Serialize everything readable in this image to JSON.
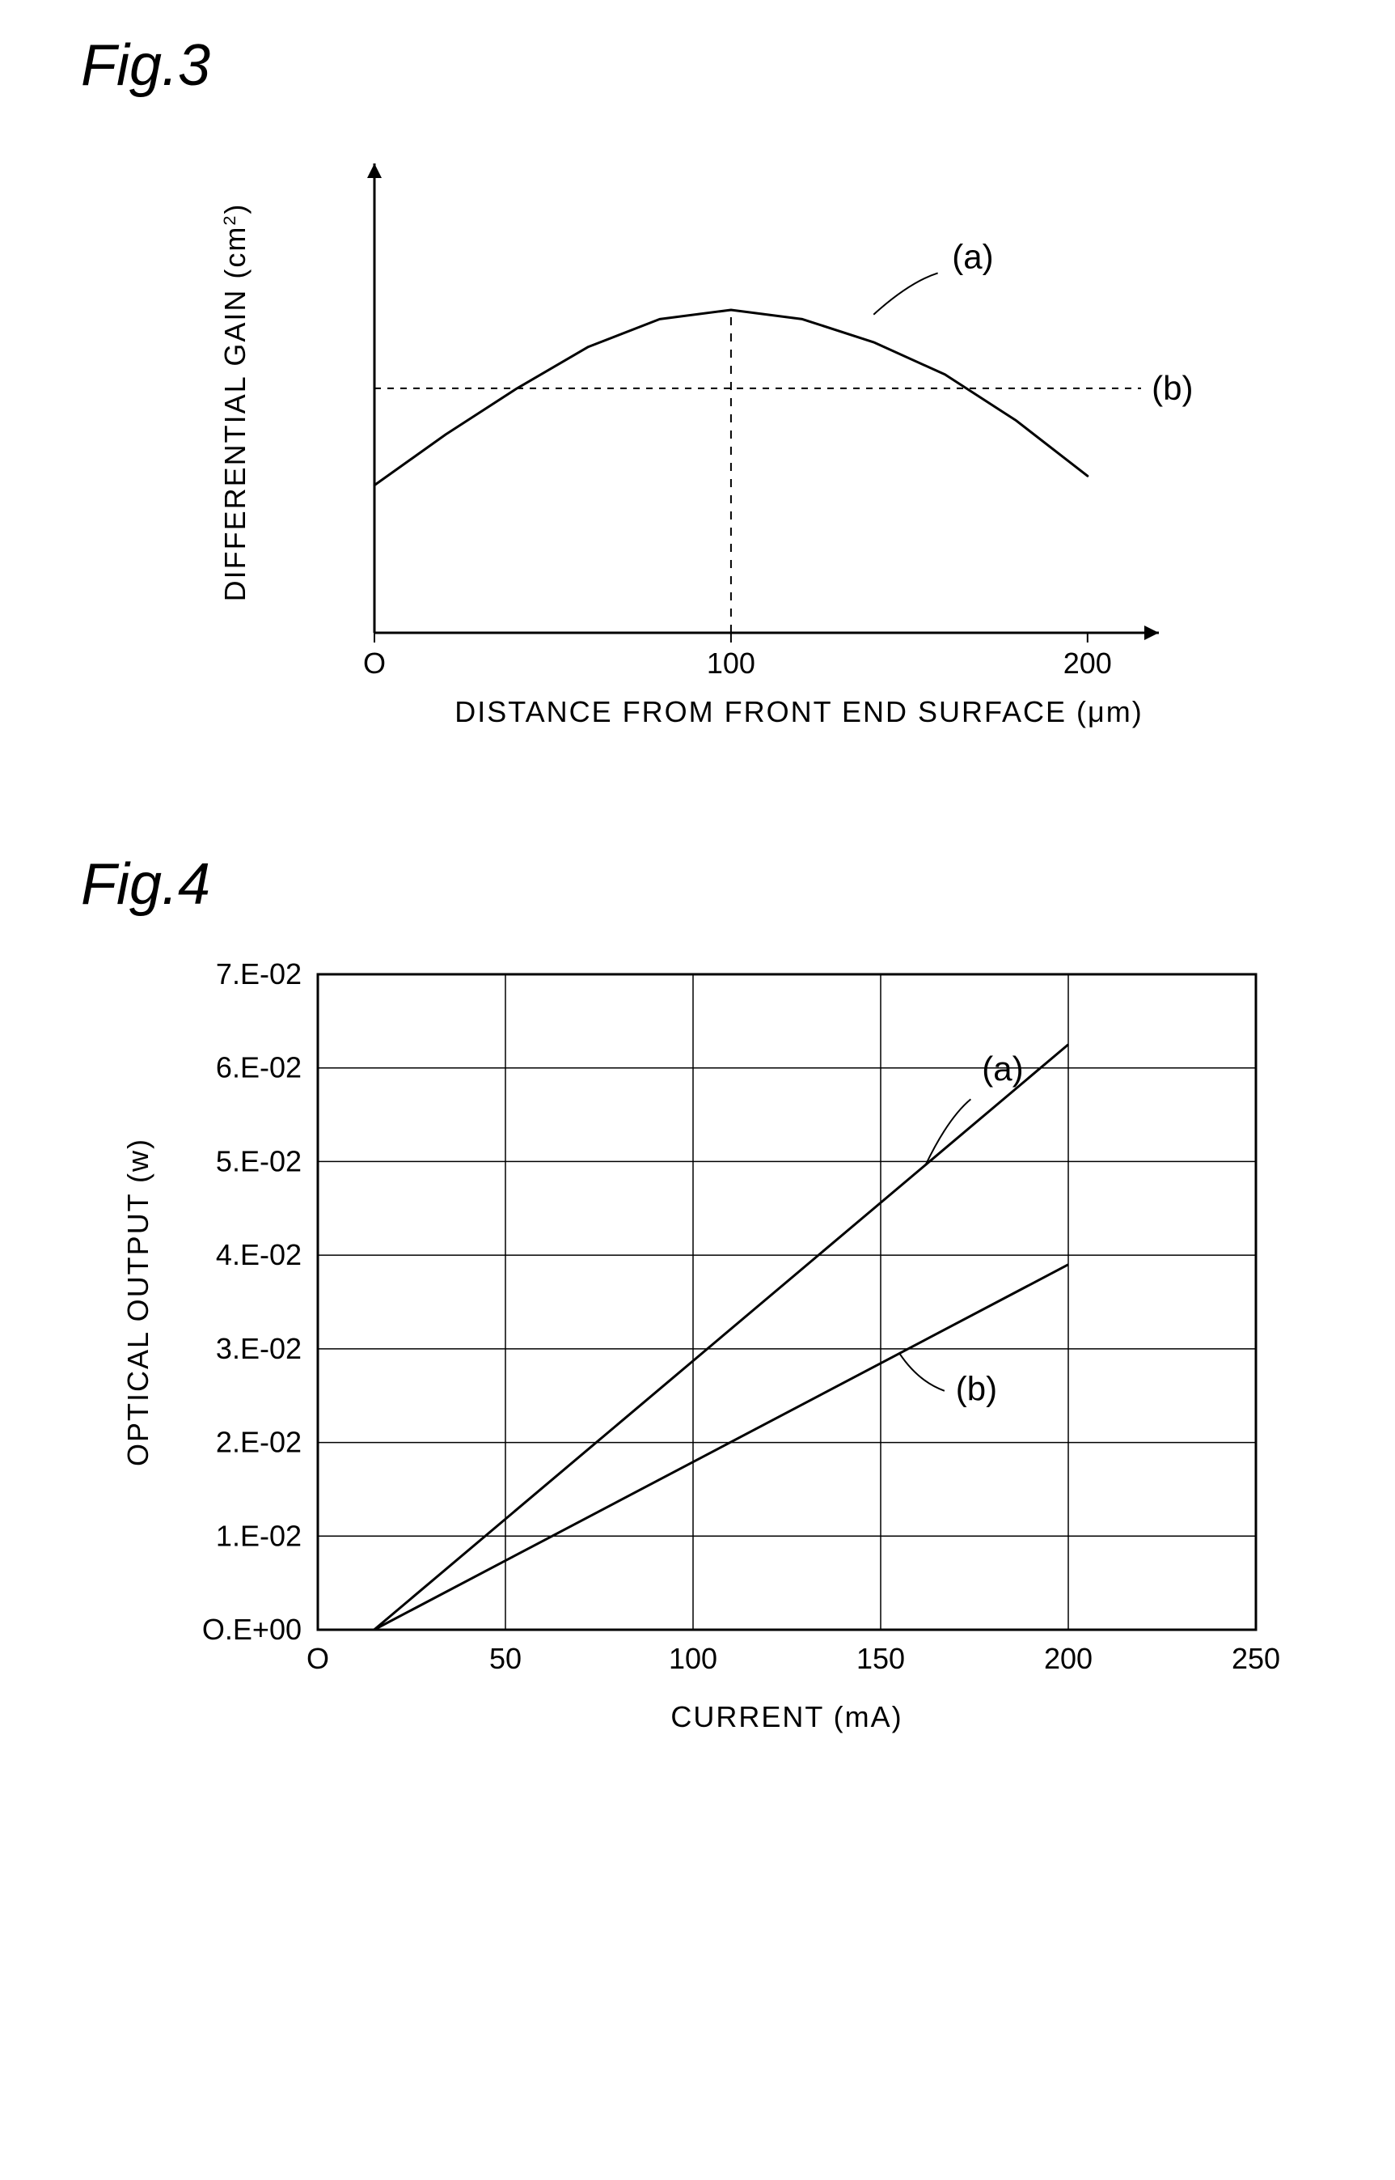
{
  "fig3": {
    "title": "Fig.3",
    "type": "line",
    "xlabel": "DISTANCE FROM FRONT END SURFACE (μm)",
    "ylabel": "DIFFERENTIAL GAIN (cm²)",
    "ylabel_prefix": "DIFFERENTIAL GAIN (cm",
    "ylabel_sup": "2",
    "ylabel_suffix": ")",
    "xlim": [
      0,
      220
    ],
    "ylim": [
      0,
      10
    ],
    "xticks": [
      0,
      100,
      200
    ],
    "xtick_labels": [
      "O",
      "100",
      "200"
    ],
    "series_a": {
      "label": "(a)",
      "color": "#000000",
      "points": [
        [
          0,
          3.2
        ],
        [
          20,
          4.3
        ],
        [
          40,
          5.3
        ],
        [
          60,
          6.2
        ],
        [
          80,
          6.8
        ],
        [
          100,
          7.0
        ],
        [
          120,
          6.8
        ],
        [
          140,
          6.3
        ],
        [
          160,
          5.6
        ],
        [
          180,
          4.6
        ],
        [
          200,
          3.4
        ]
      ],
      "line_width": 3
    },
    "series_b": {
      "label": "(b)",
      "color": "#000000",
      "y": 5.3,
      "xrange": [
        0,
        215
      ],
      "dash": "8,8",
      "line_width": 2
    },
    "dropline_x": 100,
    "dropline_y": 7.0,
    "arrow_size": 12,
    "label_fontsize": 36,
    "tick_fontsize": 36,
    "title_fontsize": 72,
    "background_color": "#ffffff",
    "axis_color": "#000000"
  },
  "fig4": {
    "title": "Fig.4",
    "type": "line",
    "xlabel": "CURRENT (mA)",
    "ylabel": "OPTICAL OUTPUT (w)",
    "xlim": [
      0,
      250
    ],
    "ylim": [
      0,
      0.07
    ],
    "xticks": [
      0,
      50,
      100,
      150,
      200,
      250
    ],
    "xtick_labels": [
      "O",
      "50",
      "100",
      "150",
      "200",
      "250"
    ],
    "yticks": [
      0,
      0.01,
      0.02,
      0.03,
      0.04,
      0.05,
      0.06,
      0.07
    ],
    "ytick_labels": [
      "O.E+00",
      "1.E-02",
      "2.E-02",
      "3.E-02",
      "4.E-02",
      "5.E-02",
      "6.E-02",
      "7.E-02"
    ],
    "series_a": {
      "label": "(a)",
      "color": "#000000",
      "points": [
        [
          15,
          0.0
        ],
        [
          200,
          0.0625
        ]
      ],
      "line_width": 3
    },
    "series_b": {
      "label": "(b)",
      "color": "#000000",
      "points": [
        [
          15,
          0.0
        ],
        [
          200,
          0.039
        ]
      ],
      "line_width": 3
    },
    "label_fontsize": 36,
    "tick_fontsize": 36,
    "title_fontsize": 72,
    "background_color": "#ffffff",
    "grid_color": "#000000",
    "axis_color": "#000000",
    "border_width": 3,
    "grid_width": 1.5
  }
}
